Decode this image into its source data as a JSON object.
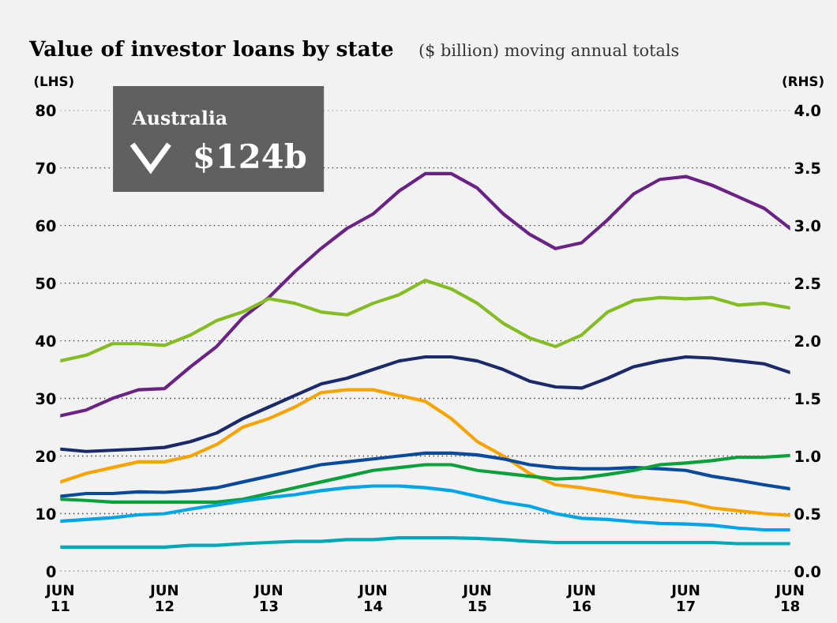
{
  "chart_data": {
    "type": "line",
    "title": "Value of investor loans by state",
    "subtitle": "($ billion) moving annual totals",
    "ylabel": "(LHS)",
    "y2label": "(RHS)",
    "annotations": [
      "Australia",
      "$124b"
    ],
    "categories": [
      "JUN\n11",
      null,
      null,
      null,
      "JUN\n12",
      null,
      null,
      null,
      "JUN\n13",
      null,
      null,
      null,
      "JUN\n14",
      null,
      null,
      null,
      "JUN\n15",
      null,
      null,
      null,
      "JUN\n16",
      null,
      null,
      null,
      "JUN\n17",
      null,
      null,
      null,
      "JUN\n18"
    ],
    "ylim": [
      0,
      80
    ],
    "yticks": [
      0,
      10,
      20,
      30,
      40,
      50,
      60,
      70,
      80
    ],
    "y2lim": [
      0,
      4
    ],
    "y2ticks": [
      {
        "value": 0,
        "label": "0.0"
      },
      {
        "value": 0.5,
        "label": "0.5"
      },
      {
        "value": 1,
        "label": "1.0"
      },
      {
        "value": 1.5,
        "label": "1.5"
      },
      {
        "value": 2,
        "label": "2.0"
      },
      {
        "value": 2.5,
        "label": "2.5"
      },
      {
        "value": 3,
        "label": "3.0"
      },
      {
        "value": 3.5,
        "label": "3.5"
      },
      {
        "value": 4,
        "label": "4.0"
      }
    ],
    "grid": "y",
    "line_style": "solid",
    "marker": "none",
    "series": [
      {
        "color": "#6a2384",
        "values": [
          27,
          28,
          30,
          31.5,
          31.7,
          35.5,
          39,
          44,
          47.5,
          52,
          56,
          59.5,
          62,
          66,
          69,
          69,
          66.5,
          62,
          58.5,
          56,
          57,
          61,
          65.5,
          68,
          68.5,
          67,
          65,
          63,
          59.5
        ]
      },
      {
        "color": "#84bd23",
        "values": [
          36.5,
          37.5,
          39.5,
          39.5,
          39.2,
          41,
          43.5,
          45,
          47.3,
          46.5,
          45,
          44.5,
          46.5,
          48,
          50.5,
          49,
          46.5,
          43,
          40.5,
          39,
          41,
          45,
          47,
          47.5,
          47.3,
          47.5,
          46.2,
          46.5,
          45.7
        ]
      },
      {
        "color": "#1b2a6b",
        "values": [
          21.2,
          20.8,
          21,
          21.2,
          21.5,
          22.5,
          24,
          26.5,
          28.5,
          30.5,
          32.5,
          33.5,
          35,
          36.5,
          37.2,
          37.2,
          36.5,
          35,
          33,
          32,
          31.8,
          33.5,
          35.5,
          36.5,
          37.2,
          37,
          36.5,
          36,
          34.5
        ]
      },
      {
        "color": "#f7a400",
        "values": [
          15.5,
          17,
          18,
          19,
          19,
          20,
          22,
          25,
          26.5,
          28.5,
          31,
          31.5,
          31.5,
          30.5,
          29.5,
          26.5,
          22.5,
          20,
          17,
          15,
          14.5,
          13.8,
          13,
          12.5,
          12,
          11,
          10.5,
          10,
          9.7
        ]
      },
      {
        "color": "#0a4a9c",
        "values": [
          13,
          13.5,
          13.5,
          13.8,
          13.7,
          14,
          14.5,
          15.5,
          16.5,
          17.5,
          18.5,
          19,
          19.5,
          20,
          20.5,
          20.5,
          20.2,
          19.5,
          18.5,
          18,
          17.8,
          17.8,
          18,
          17.8,
          17.5,
          16.5,
          15.8,
          15,
          14.3
        ]
      },
      {
        "color": "#0aa13b",
        "values": [
          12.5,
          12.3,
          12,
          12,
          12,
          12,
          12,
          12.5,
          13.5,
          14.5,
          15.5,
          16.5,
          17.5,
          18,
          18.5,
          18.5,
          17.5,
          17,
          16.5,
          16,
          16.2,
          16.8,
          17.5,
          18.5,
          18.8,
          19.2,
          19.8,
          19.8,
          20.1
        ]
      },
      {
        "color": "#00a5e8",
        "values": [
          8.7,
          9,
          9.3,
          9.8,
          10,
          10.8,
          11.5,
          12.2,
          12.8,
          13.3,
          14,
          14.5,
          14.8,
          14.8,
          14.5,
          14,
          13,
          12,
          11.3,
          10,
          9.2,
          9,
          8.6,
          8.3,
          8.2,
          8,
          7.5,
          7.2,
          7.2
        ]
      },
      {
        "color": "#00a9b5",
        "values": [
          4.2,
          4.2,
          4.2,
          4.2,
          4.2,
          4.5,
          4.5,
          4.8,
          5,
          5.2,
          5.2,
          5.5,
          5.5,
          5.8,
          5.8,
          5.8,
          5.7,
          5.5,
          5.2,
          5,
          5,
          5,
          5,
          5,
          5,
          5,
          4.8,
          4.8,
          4.8
        ]
      }
    ]
  }
}
